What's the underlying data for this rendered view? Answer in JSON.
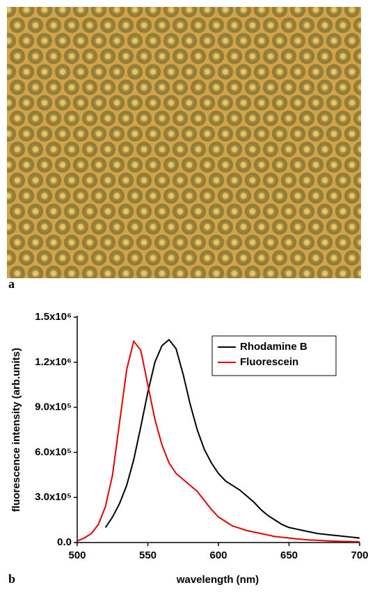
{
  "panel_labels": [
    "a",
    "b"
  ],
  "chart_data": {
    "type": "line",
    "xlabel": "wavelength (nm)",
    "ylabel": "fluorescence intensity (arb.units)",
    "x": [
      500,
      505,
      510,
      515,
      520,
      525,
      530,
      535,
      540,
      545,
      550,
      555,
      560,
      565,
      570,
      575,
      580,
      585,
      590,
      595,
      600,
      605,
      610,
      615,
      620,
      625,
      630,
      635,
      640,
      645,
      650,
      655,
      660,
      665,
      670,
      675,
      680,
      685,
      690,
      695,
      700
    ],
    "series": [
      {
        "name": "Rhodamine B",
        "color": "#000000",
        "values": [
          null,
          null,
          null,
          null,
          100000,
          170000,
          260000,
          380000,
          550000,
          770000,
          1000000,
          1200000,
          1310000,
          1350000,
          1290000,
          1120000,
          920000,
          750000,
          620000,
          530000,
          460000,
          410000,
          380000,
          350000,
          310000,
          270000,
          220000,
          180000,
          150000,
          120000,
          100000,
          90000,
          80000,
          70000,
          60000,
          55000,
          50000,
          45000,
          40000,
          35000,
          30000
        ]
      },
      {
        "name": "Fluorescein",
        "color": "#e00000",
        "values": [
          10000,
          30000,
          60000,
          120000,
          240000,
          450000,
          800000,
          1150000,
          1340000,
          1280000,
          1050000,
          820000,
          650000,
          530000,
          460000,
          420000,
          380000,
          340000,
          280000,
          220000,
          170000,
          140000,
          110000,
          95000,
          80000,
          70000,
          60000,
          50000,
          40000,
          35000,
          30000,
          25000,
          20000,
          17000,
          15000,
          12000,
          10000,
          8000,
          7000,
          6000,
          5000
        ]
      }
    ],
    "xlim": [
      500,
      700
    ],
    "xticks": [
      500,
      550,
      600,
      650,
      700
    ],
    "ylim": [
      0,
      1500000
    ],
    "yticks": [
      {
        "value": 0,
        "label": "0.0"
      },
      {
        "value": 300000,
        "label": "3.0x10⁵"
      },
      {
        "value": 600000,
        "label": "6.0x10⁵"
      },
      {
        "value": 900000,
        "label": "9.0x10⁵"
      },
      {
        "value": 1200000,
        "label": "1.2x10⁶"
      },
      {
        "value": 1500000,
        "label": "1.5x10⁶"
      }
    ],
    "legend": "upper right"
  }
}
